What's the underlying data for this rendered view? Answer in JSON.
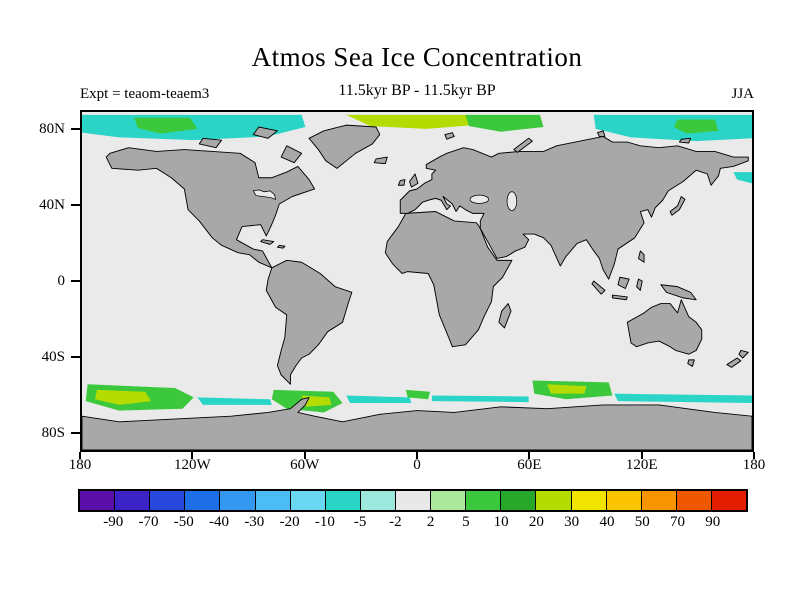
{
  "header": {
    "title": "Atmos Sea Ice Concentration",
    "subtitle": "11.5kyr BP - 11.5kyr BP",
    "experiment": "Expt = teaom-teaem3",
    "season": "JJA"
  },
  "chart_data": {
    "type": "heatmap",
    "title": "Atmos Sea Ice Concentration",
    "subtitle": "11.5kyr BP - 11.5kyr BP",
    "experiment": "Expt = teaom-teaem3",
    "season": "JJA",
    "projection": "equirectangular world map, lon -180..180, lat -90..90",
    "axes": {
      "lat_ticks": [
        {
          "label": "80N",
          "value": 80
        },
        {
          "label": "40N",
          "value": 40
        },
        {
          "label": "0",
          "value": 0
        },
        {
          "label": "40S",
          "value": -40
        },
        {
          "label": "80S",
          "value": -80
        }
      ],
      "lon_ticks": [
        {
          "label": "180",
          "value": -180
        },
        {
          "label": "120W",
          "value": -120
        },
        {
          "label": "60W",
          "value": -60
        },
        {
          "label": "0",
          "value": 0
        },
        {
          "label": "60E",
          "value": 60
        },
        {
          "label": "120E",
          "value": 120
        },
        {
          "label": "180",
          "value": 180
        }
      ]
    },
    "colorbar": {
      "tick_labels": [
        "-90",
        "-70",
        "-50",
        "-40",
        "-30",
        "-20",
        "-10",
        "-5",
        "-2",
        "2",
        "5",
        "10",
        "20",
        "30",
        "40",
        "50",
        "70",
        "90"
      ],
      "tick_values": [
        -90,
        -70,
        -50,
        -40,
        -30,
        -20,
        -10,
        -5,
        -2,
        2,
        5,
        10,
        20,
        30,
        40,
        50,
        70,
        90
      ],
      "colors": [
        "#5a0fa8",
        "#3c23c8",
        "#2848dc",
        "#1e6ee8",
        "#3498f0",
        "#4cbcf4",
        "#6ad8f0",
        "#2ad5c8",
        "#9ce8dc",
        "#e8e8e8",
        "#ace89c",
        "#3cc83c",
        "#28a828",
        "#b4dc00",
        "#f0e400",
        "#fac400",
        "#f89400",
        "#f05800",
        "#e41c00"
      ]
    },
    "map_colors": {
      "ocean": "#eaeaea",
      "land": "#a8a8a8",
      "coast": "#000000"
    },
    "patch_colors": {
      "teal": "#2ad5c8",
      "green": "#3cc83c",
      "chartreuse": "#b4dc00"
    },
    "patches": [
      {
        "name": "arctic-west-cyan",
        "color_key": "teal",
        "points": [
          [
            -180,
            88.5
          ],
          [
            -62,
            88.5
          ],
          [
            -60,
            82
          ],
          [
            -80,
            77
          ],
          [
            -120,
            75
          ],
          [
            -160,
            76.5
          ],
          [
            -180,
            79
          ]
        ]
      },
      {
        "name": "arctic-west-green",
        "color_key": "green",
        "points": [
          [
            -152,
            87
          ],
          [
            -122,
            87
          ],
          [
            -118,
            81
          ],
          [
            -138,
            78.5
          ],
          [
            -150,
            81.5
          ]
        ]
      },
      {
        "name": "arctic-atlantic-chartreuse",
        "color_key": "chartreuse",
        "points": [
          [
            -38,
            88.5
          ],
          [
            28,
            88.5
          ],
          [
            30,
            83
          ],
          [
            5,
            81
          ],
          [
            -25,
            82.5
          ]
        ]
      },
      {
        "name": "arctic-barents-green",
        "color_key": "green",
        "points": [
          [
            26,
            88.5
          ],
          [
            66,
            88.5
          ],
          [
            68,
            82
          ],
          [
            45,
            79.5
          ],
          [
            28,
            82.5
          ]
        ]
      },
      {
        "name": "arctic-east-cyan",
        "color_key": "teal",
        "points": [
          [
            95,
            88.5
          ],
          [
            180,
            88.5
          ],
          [
            180,
            76
          ],
          [
            150,
            74.5
          ],
          [
            115,
            76.5
          ],
          [
            96,
            81
          ]
        ]
      },
      {
        "name": "arctic-east-green",
        "color_key": "green",
        "points": [
          [
            140,
            86
          ],
          [
            160,
            86
          ],
          [
            162,
            80
          ],
          [
            145,
            78.5
          ],
          [
            138,
            82
          ]
        ]
      },
      {
        "name": "bering-cyan",
        "color_key": "teal",
        "points": [
          [
            170,
            58
          ],
          [
            180,
            58
          ],
          [
            180,
            52
          ],
          [
            172,
            54
          ]
        ]
      },
      {
        "name": "antarctic-pacific-green",
        "color_key": "green",
        "points": [
          [
            -177,
            -55
          ],
          [
            -130,
            -57
          ],
          [
            -120,
            -62
          ],
          [
            -126,
            -68
          ],
          [
            -160,
            -69
          ],
          [
            -178,
            -64
          ]
        ]
      },
      {
        "name": "antarctic-pacific-chartreuse",
        "color_key": "chartreuse",
        "points": [
          [
            -172,
            -58
          ],
          [
            -146,
            -59
          ],
          [
            -143,
            -64
          ],
          [
            -160,
            -66
          ],
          [
            -173,
            -63
          ]
        ]
      },
      {
        "name": "antarctic-cyan-band",
        "color_key": "teal",
        "points": [
          [
            -118,
            -62
          ],
          [
            -79,
            -63
          ],
          [
            -78,
            -66
          ],
          [
            -115,
            -66
          ]
        ]
      },
      {
        "name": "antarctic-peninsula-green",
        "color_key": "green",
        "points": [
          [
            -77,
            -58
          ],
          [
            -45,
            -59
          ],
          [
            -40,
            -65
          ],
          [
            -50,
            -70
          ],
          [
            -70,
            -68
          ],
          [
            -78,
            -63
          ]
        ]
      },
      {
        "name": "antarctic-peninsula-chartreuse",
        "color_key": "chartreuse",
        "points": [
          [
            -62,
            -61
          ],
          [
            -47,
            -62
          ],
          [
            -46,
            -66
          ],
          [
            -60,
            -67
          ]
        ]
      },
      {
        "name": "antarctic-atlantic-cyan",
        "color_key": "teal",
        "points": [
          [
            -38,
            -61
          ],
          [
            -4,
            -62
          ],
          [
            -3,
            -65
          ],
          [
            -36,
            -65
          ]
        ]
      },
      {
        "name": "antarctic-greenwich-green",
        "color_key": "green",
        "points": [
          [
            -6,
            -58
          ],
          [
            7,
            -59
          ],
          [
            6,
            -63
          ],
          [
            -5,
            -62
          ]
        ]
      },
      {
        "name": "antarctic-indian-cyan",
        "color_key": "teal",
        "points": [
          [
            8,
            -61
          ],
          [
            60,
            -61.5
          ],
          [
            60,
            -64.5
          ],
          [
            8,
            -64
          ]
        ]
      },
      {
        "name": "antarctic-indian-green",
        "color_key": "green",
        "points": [
          [
            62,
            -53
          ],
          [
            103,
            -54
          ],
          [
            105,
            -61
          ],
          [
            80,
            -63
          ],
          [
            63,
            -60
          ]
        ]
      },
      {
        "name": "antarctic-indian-chartreuse",
        "color_key": "chartreuse",
        "points": [
          [
            70,
            -55
          ],
          [
            91,
            -56
          ],
          [
            90,
            -60
          ],
          [
            72,
            -60
          ]
        ]
      },
      {
        "name": "antarctic-east-cyan",
        "color_key": "teal",
        "points": [
          [
            106,
            -60
          ],
          [
            180,
            -61
          ],
          [
            180,
            -65
          ],
          [
            108,
            -64
          ]
        ]
      }
    ]
  }
}
